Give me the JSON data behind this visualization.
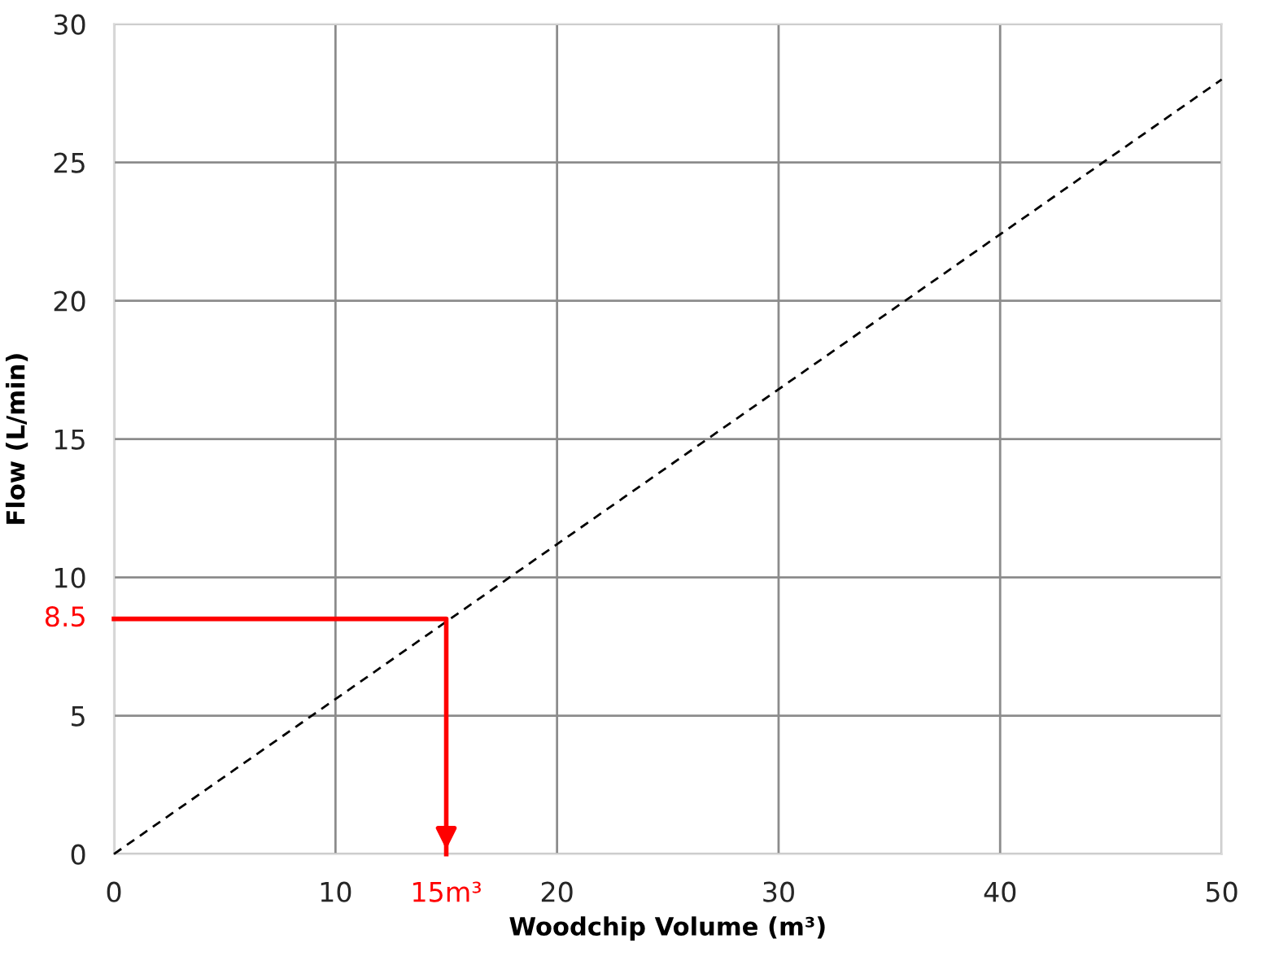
{
  "chart_data": {
    "type": "line",
    "xlabel": "Woodchip Volume (m³)",
    "ylabel": "Flow (L/min)",
    "series": [
      {
        "color": "#000000",
        "line_style": "dashed",
        "x": [
          0,
          50
        ],
        "values": [
          0,
          28
        ]
      },
      {
        "color": "#ff0000",
        "line_style": "solid",
        "x": [
          0,
          15,
          15
        ],
        "values": [
          8.5,
          8.5,
          0
        ]
      }
    ],
    "annotations": [
      {
        "text": "8.5",
        "x": 0,
        "y": 8.5
      },
      {
        "text": "15m³",
        "x": 15,
        "y": 0
      }
    ],
    "xlim": [
      0,
      50
    ],
    "xticks": [
      0,
      10,
      20,
      30,
      40,
      50
    ],
    "ylim": [
      0,
      30
    ],
    "yticks": [
      0,
      5,
      10,
      15,
      20,
      25,
      30
    ],
    "grid": true,
    "marker": "none"
  }
}
